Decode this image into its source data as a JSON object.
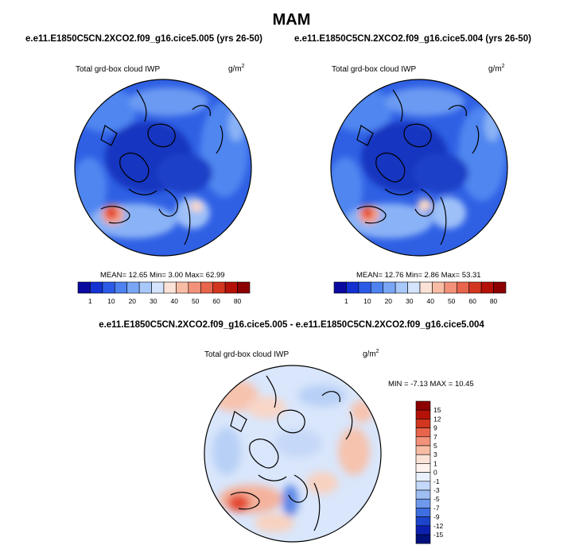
{
  "figure": {
    "title": "MAM",
    "case_a": "e.e11.E1850C5CN.2XCO2.f09_g16.cice5.005 (yrs 26-50)",
    "case_b": "e.e11.E1850C5CN.2XCO2.f09_g16.cice5.004 (yrs 26-50)",
    "diff_title": "e.e11.E1850C5CN.2XCO2.f09_g16.cice5.005 - e.e11.E1850C5CN.2XCO2.f09_g16.cice5.004"
  },
  "panels": {
    "left": {
      "variable": "Total grd-box cloud IWP",
      "units_base": "g/m",
      "units_exp": "2",
      "stats": "MEAN=  12.65  Min=   3.00  Max=  62.99"
    },
    "right": {
      "variable": "Total grd-box cloud IWP",
      "units_base": "g/m",
      "units_exp": "2",
      "stats": "MEAN=  12.76  Min=   2.86  Max=  53.31"
    },
    "diff": {
      "variable": "Total grd-box cloud IWP",
      "units_base": "g/m",
      "units_exp": "2",
      "stats": "MIN =  -7.13 MAX =  10.45"
    }
  },
  "colorbars": {
    "abs": {
      "labels": [
        "1",
        "10",
        "20",
        "30",
        "40",
        "50",
        "60",
        "80"
      ],
      "colors": [
        "#0a0aa0",
        "#1432d2",
        "#2a5ae6",
        "#4d82f0",
        "#7aa6f6",
        "#a8c8fa",
        "#d4e4fc",
        "#fbe2d6",
        "#f8bca4",
        "#f2927a",
        "#e8644c",
        "#d2361e",
        "#b41208",
        "#8c0000"
      ]
    },
    "diff": {
      "labels": [
        "15",
        "12",
        "9",
        "7",
        "5",
        "3",
        "1",
        "0",
        "-1",
        "-3",
        "-5",
        "-7",
        "-9",
        "-12",
        "-15"
      ],
      "colors": [
        "#8c0000",
        "#b41208",
        "#d2361e",
        "#e8644c",
        "#f2927a",
        "#f8bca4",
        "#fbe2d6",
        "#fdf3ec",
        "#e8f0fc",
        "#c4d8fa",
        "#9ebef4",
        "#6e98ec",
        "#3e6ee0",
        "#1c44cc",
        "#0c20b0",
        "#00107a"
      ]
    }
  },
  "map_colors": {
    "ocean_deep": "#2f60e4",
    "arctic_core": "#1436c0",
    "mid_blue": "#4f86f0",
    "light_blue": "#8ab2f6",
    "warm_hot": "#e4442c",
    "diff_base": "#d9e6fb",
    "diff_pos": "#f6c3ae",
    "diff_neg": "#9dbcf2"
  }
}
